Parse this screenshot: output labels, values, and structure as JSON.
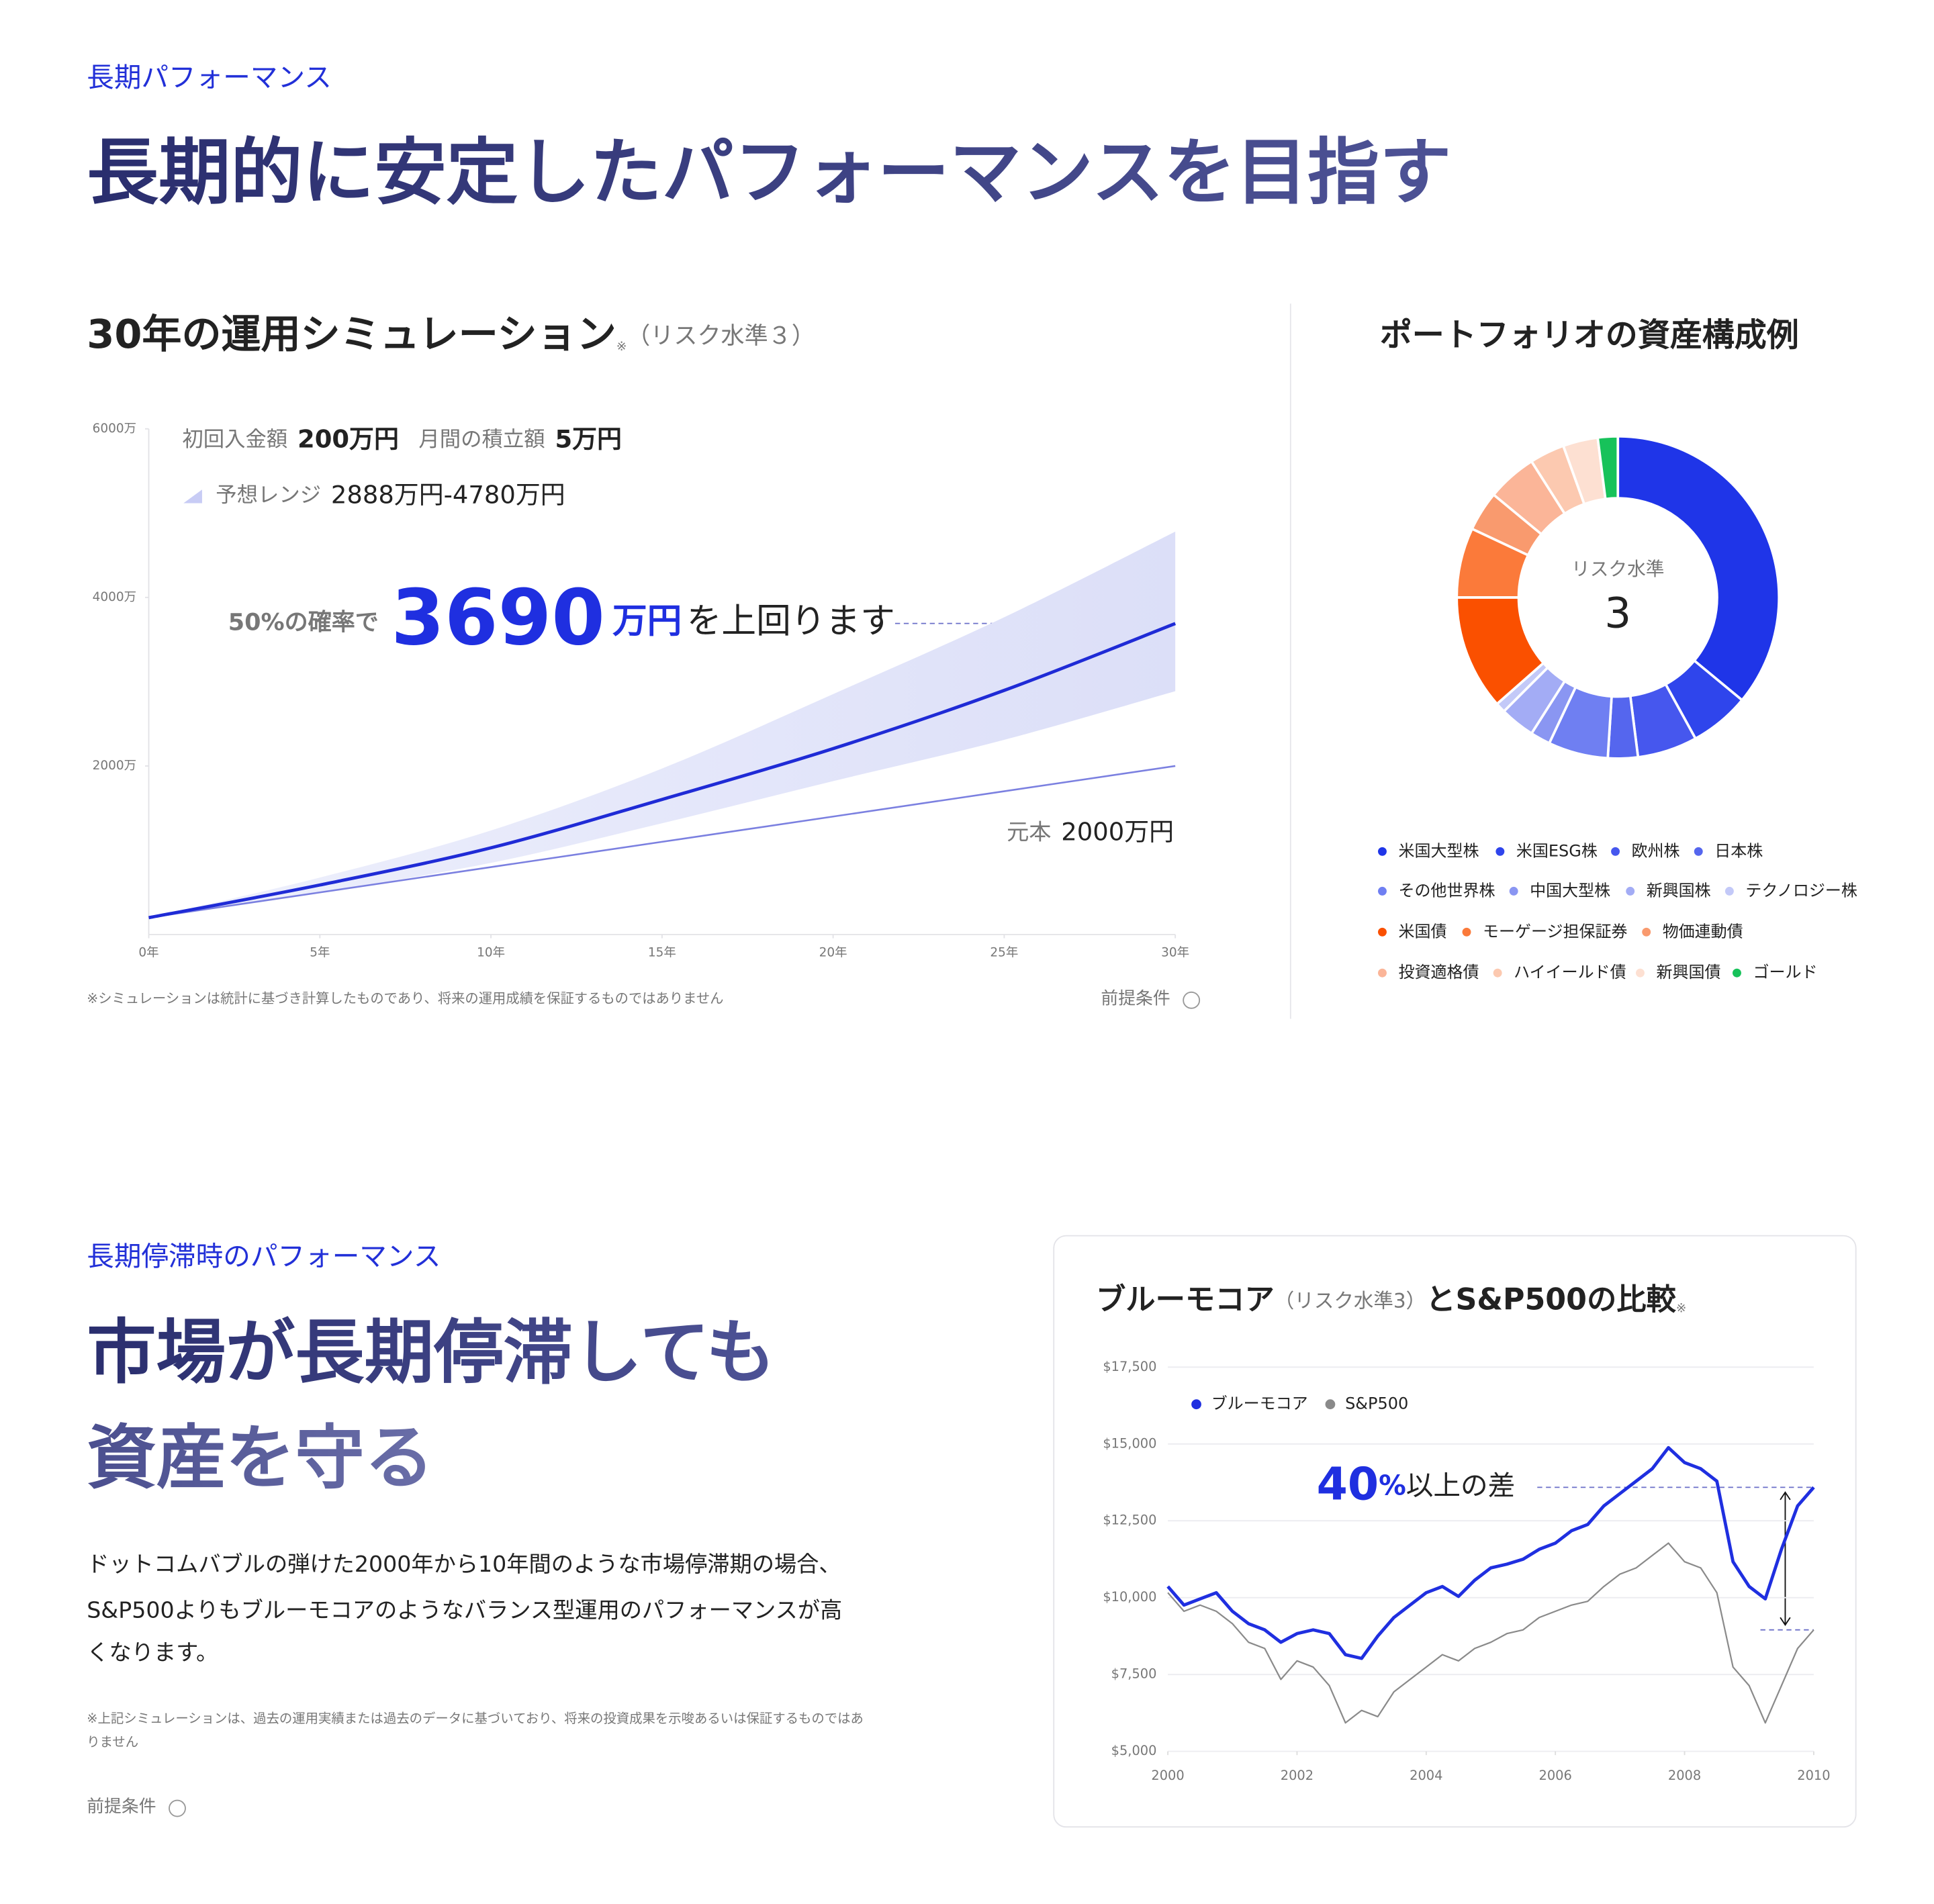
{
  "section1": {
    "label": "長期パフォーマンス",
    "heading": "長期的に安定したパフォーマンスを目指す"
  },
  "section2": {
    "label": "長期停滞時のパフォーマンス",
    "heading": [
      "市場が長期停滞しても",
      "資産を守る"
    ],
    "body": [
      "ドットコムバブルの弾けた2000年から10年間のような市場停滞期の場合、",
      "S&P500よりもブルーモコアのようなバランス型運用のパフォーマンスが高",
      "くなります。"
    ],
    "note": [
      "※上記シミュレーションは、過去の運用実績または過去のデータに基づいており、将来の投資成果を示唆あるいは保証するものではあ",
      "りません"
    ],
    "conditions": "前提条件"
  },
  "chart_data": [
    {
      "type": "area",
      "title": "30年の運用シミュレーション",
      "title_note": "※",
      "subtitle": "（リスク水準３）",
      "initial_label": "初回入金額",
      "initial_value": "200万円",
      "monthly_label": "月間の積立額",
      "monthly_value": "5万円",
      "range_value": "2888万円-4780万円",
      "callout_prefix": "50%の確率で",
      "callout_value": "3690",
      "callout_unit": "万円",
      "callout_suffix": "を上回ります",
      "principal_value": "2000万円",
      "footnote": "※シミュレーションは統計に基づき計算したものであり、将来の運用成績を保証するものではありません",
      "conditions": "前提条件",
      "x": [
        0,
        5,
        10,
        15,
        20,
        25,
        30
      ],
      "xlim": [
        0,
        30
      ],
      "xticks": [
        {
          "value": 0,
          "label": "0年"
        },
        {
          "value": 5,
          "label": "5年"
        },
        {
          "value": 10,
          "label": "10年"
        },
        {
          "value": 15,
          "label": "15年"
        },
        {
          "value": 20,
          "label": "20年"
        },
        {
          "value": 25,
          "label": "25年"
        },
        {
          "value": 30,
          "label": "30年"
        }
      ],
      "ylim": [
        0,
        6000
      ],
      "yticks": [
        {
          "value": 2000,
          "label": "2000万"
        },
        {
          "value": 4000,
          "label": "4000万"
        },
        {
          "value": 6000,
          "label": "6000万"
        }
      ],
      "series": {
        "range": {
          "name": "予想レンジ",
          "color": "#d9dcf7",
          "low": [
            200,
            500,
            850,
            1320,
            1820,
            2310,
            2888
          ],
          "high": [
            200,
            676,
            1235,
            1970,
            2853,
            3765,
            4780
          ]
        },
        "median": {
          "color": "#1f2bd6",
          "values": [
            200,
            588,
            1029,
            1603,
            2206,
            2897,
            3690
          ]
        },
        "principal": {
          "name": "元本",
          "color": "#7b80e0",
          "values": [
            200,
            500,
            800,
            1100,
            1400,
            1700,
            2000
          ]
        }
      }
    },
    {
      "type": "donut",
      "title": "ポートフォリオの資産構成例",
      "center_label": "リスク水準",
      "center_value": 3,
      "categories": [
        "米国大型株",
        "米国ESG株",
        "欧州株",
        "日本株",
        "その他世界株",
        "中国大型株",
        "新興国株",
        "テクノロジー株",
        "米国債",
        "モーゲージ担保証券",
        "物価連動債",
        "投資適格債",
        "ハイイールド債",
        "新興国債",
        "ゴールド"
      ],
      "values": [
        36,
        6,
        6,
        3,
        6,
        2,
        3.5,
        1,
        11.5,
        7,
        4,
        5,
        3.5,
        3.5,
        2
      ],
      "colors": [
        "#1f35e8",
        "#2f45ec",
        "#4657ee",
        "#5566ee",
        "#6f7ff2",
        "#8a96f2",
        "#a3acf5",
        "#c3c9f8",
        "#fa5000",
        "#fb7a3a",
        "#f99a6e",
        "#fbb598",
        "#fcc9b0",
        "#fde0d2",
        "#17c25a"
      ]
    },
    {
      "type": "line",
      "title": "ブルーモコア",
      "subtitle": "（リスク水準3）",
      "title_suffix": "とS&P500の比較",
      "title_note": "※",
      "annotation_value": "40",
      "annotation_unit": "%",
      "annotation_text": "以上の差",
      "x": [
        2000,
        2000.25,
        2000.5,
        2000.75,
        2001,
        2001.25,
        2001.5,
        2001.75,
        2002,
        2002.25,
        2002.5,
        2002.75,
        2003,
        2003.25,
        2003.5,
        2003.75,
        2004,
        2004.25,
        2004.5,
        2004.75,
        2005,
        2005.25,
        2005.5,
        2005.75,
        2006,
        2006.25,
        2006.5,
        2006.75,
        2007,
        2007.25,
        2007.5,
        2007.75,
        2008,
        2008.25,
        2008.5,
        2008.75,
        2009,
        2009.25,
        2009.5,
        2009.75,
        2010
      ],
      "xlim": [
        2000,
        2010
      ],
      "xticks": [
        2000,
        2002,
        2004,
        2006,
        2008,
        2010
      ],
      "ylim": [
        5000,
        17500
      ],
      "yticks": [
        {
          "value": 5000,
          "label": "$5,000"
        },
        {
          "value": 7500,
          "label": "$7,500"
        },
        {
          "value": 10000,
          "label": "$10,000"
        },
        {
          "value": 12500,
          "label": "$12,500"
        },
        {
          "value": 15000,
          "label": "$15,000"
        },
        {
          "value": 17500,
          "label": "$17,500"
        }
      ],
      "grid": true,
      "series": [
        {
          "name": "ブルーモコア",
          "color": "#1f2fe0",
          "values": [
            10363,
            9758,
            9960,
            10160,
            9556,
            9153,
            8952,
            8548,
            8831,
            8952,
            8831,
            8145,
            8024,
            8750,
            9355,
            9758,
            10161,
            10363,
            10040,
            10565,
            10968,
            11089,
            11250,
            11573,
            11774,
            12177,
            12379,
            12984,
            13387,
            13790,
            14194,
            14879,
            14395,
            14194,
            13790,
            11169,
            10363,
            9960,
            11573,
            12984,
            13589
          ]
        },
        {
          "name": "S&P500",
          "color": "#8a8a8a",
          "values": [
            10161,
            9556,
            9758,
            9556,
            9153,
            8548,
            8347,
            7339,
            7944,
            7742,
            7137,
            5927,
            6331,
            6129,
            6935,
            7339,
            7742,
            8145,
            7944,
            8347,
            8548,
            8831,
            8952,
            9355,
            9556,
            9758,
            9879,
            10363,
            10766,
            10968,
            11371,
            11774,
            11169,
            10968,
            10161,
            7742,
            7137,
            5927,
            7137,
            8347,
            8952
          ]
        }
      ]
    }
  ]
}
